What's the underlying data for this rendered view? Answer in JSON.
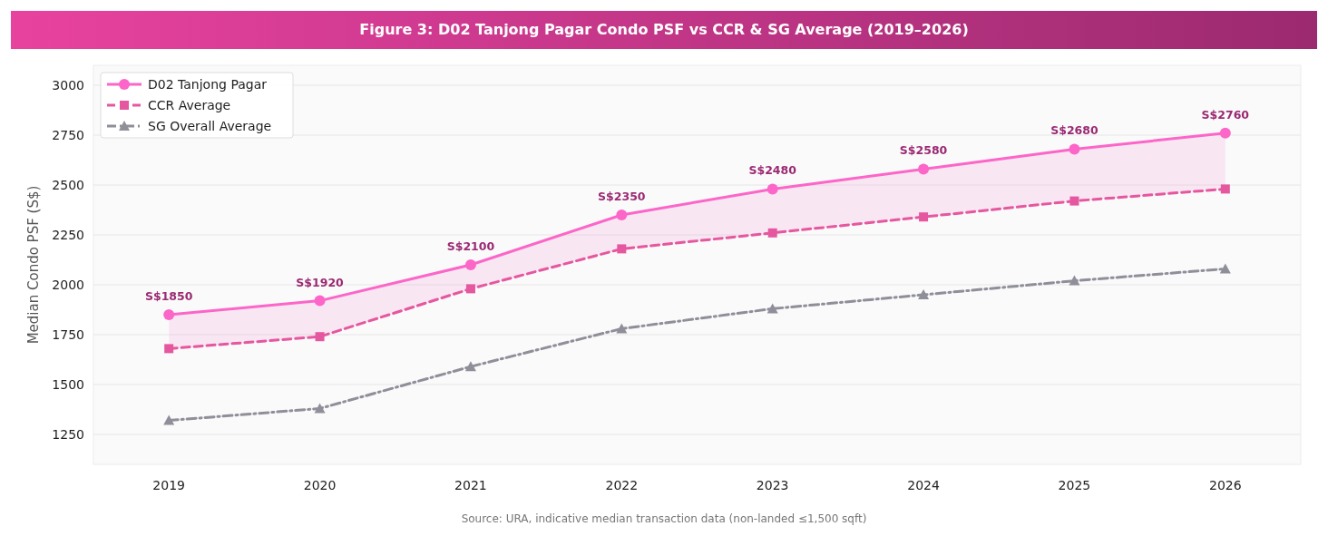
{
  "chart_data": {
    "type": "line",
    "title": "Figure 3: D02 Tanjong Pagar Condo PSF vs CCR & SG Average (2019–2026)",
    "ylabel": "Median Condo PSF (S$)",
    "x": [
      2019,
      2020,
      2021,
      2022,
      2023,
      2024,
      2025,
      2026
    ],
    "xlim": [
      2018.5,
      2026.5
    ],
    "xticks": [
      2019,
      2020,
      2021,
      2022,
      2023,
      2024,
      2025,
      2026
    ],
    "ylim": [
      1100,
      3100
    ],
    "yticks": [
      1250,
      1500,
      1750,
      2000,
      2250,
      2500,
      2750,
      3000
    ],
    "grid": "y",
    "legend": "top left",
    "series": [
      {
        "name": "D02 Tanjong Pagar",
        "color": "#fb66c8",
        "marker": "circle",
        "line_style": "solid",
        "values": [
          1850,
          1920,
          2100,
          2350,
          2480,
          2580,
          2680,
          2760
        ],
        "value_labels": [
          "S$1850",
          "S$1920",
          "S$2100",
          "S$2350",
          "S$2480",
          "S$2580",
          "S$2680",
          "S$2760"
        ],
        "lower": [
          1680,
          1740,
          1980,
          2180,
          2260,
          2340,
          2420,
          2480
        ],
        "upper": [
          1850,
          1920,
          2100,
          2350,
          2480,
          2580,
          2680,
          2760
        ]
      },
      {
        "name": "CCR Average",
        "color": "#e5579f",
        "marker": "square",
        "line_style": "dashed",
        "values": [
          1680,
          1740,
          1980,
          2180,
          2260,
          2340,
          2420,
          2480
        ]
      },
      {
        "name": "SG Overall Average",
        "color": "#8f8f9a",
        "marker": "triangle",
        "line_style": "dashdot",
        "values": [
          1320,
          1380,
          1590,
          1780,
          1880,
          1950,
          2020,
          2080
        ]
      }
    ],
    "annotations": [
      "Source: URA, indicative median transaction data (non-landed ≤1,500 sqft)"
    ]
  }
}
